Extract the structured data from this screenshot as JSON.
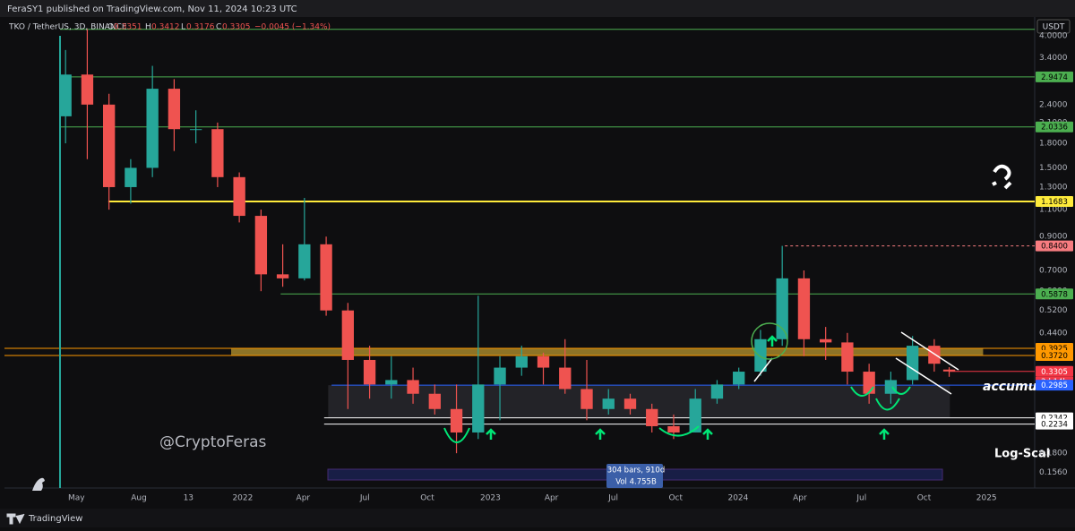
{
  "header": {
    "publisher": "FeraSY1 published on TradingView.com, Nov 11, 2024 10:23 UTC"
  },
  "footer": {
    "brand": "TradingView"
  },
  "chart_data": {
    "type": "candlestick",
    "symbol": "TKO / TetherUS, 3D, BINANCE",
    "last_labels": [
      "O",
      "H",
      "L",
      "C"
    ],
    "last": {
      "open": 0.3351,
      "high": 0.3412,
      "low": 0.3176,
      "close": 0.3305,
      "change": {
        "value": -0.0045,
        "label": "−0.0045 (−1.34%)"
      }
    },
    "currency": "USDT",
    "countdown": "2d 14h",
    "log_scale": true,
    "grid": false,
    "up_color": "#26a69a",
    "down_color": "#ef5350",
    "xlim": [
      -106,
      1412
    ],
    "xticks": [
      {
        "value": 0,
        "label": "May"
      },
      {
        "value": 92,
        "label": "Aug"
      },
      {
        "value": 165,
        "label": "13"
      },
      {
        "value": 245,
        "label": "2022"
      },
      {
        "value": 334,
        "label": "Apr"
      },
      {
        "value": 425,
        "label": "Jul"
      },
      {
        "value": 517,
        "label": "Oct"
      },
      {
        "value": 610,
        "label": "2023"
      },
      {
        "value": 700,
        "label": "Apr"
      },
      {
        "value": 791,
        "label": "Jul"
      },
      {
        "value": 883,
        "label": "Oct"
      },
      {
        "value": 975,
        "label": "2024"
      },
      {
        "value": 1066,
        "label": "Apr"
      },
      {
        "value": 1157,
        "label": "Jul"
      },
      {
        "value": 1249,
        "label": "Oct"
      },
      {
        "value": 1341,
        "label": "2025"
      }
    ],
    "ylim": [
      0.139,
      4.57
    ],
    "yticks": [
      {
        "value": 4.0,
        "label": "4.0000"
      },
      {
        "value": 3.4,
        "label": "3.4000"
      },
      {
        "value": 2.4,
        "label": "2.4000"
      },
      {
        "value": 2.1,
        "label": "2.1000"
      },
      {
        "value": 1.8,
        "label": "1.8000"
      },
      {
        "value": 1.5,
        "label": "1.5000"
      },
      {
        "value": 1.3,
        "label": "1.3000"
      },
      {
        "value": 1.1,
        "label": "1.1000"
      },
      {
        "value": 0.9,
        "label": "0.9000"
      },
      {
        "value": 0.7,
        "label": "0.7000"
      },
      {
        "value": 0.6,
        "label": "0.6000"
      },
      {
        "value": 0.52,
        "label": "0.5200"
      },
      {
        "value": 0.44,
        "label": "0.4400"
      },
      {
        "value": 0.18,
        "label": "0.1800"
      },
      {
        "value": 0.156,
        "label": "0.1560"
      }
    ],
    "x": [
      -16,
      16,
      48,
      80,
      112,
      144,
      176,
      208,
      240,
      272,
      304,
      336,
      368,
      400,
      432,
      464,
      496,
      528,
      560,
      592,
      624,
      656,
      688,
      720,
      752,
      784,
      816,
      848,
      880,
      912,
      944,
      976,
      1008,
      1040,
      1072,
      1104,
      1136,
      1168,
      1200,
      1232,
      1264,
      1286
    ],
    "open": [
      2.2,
      3.0,
      2.4,
      1.3,
      1.5,
      2.7,
      2.0,
      2.0,
      1.4,
      1.05,
      0.68,
      0.66,
      0.85,
      0.52,
      0.36,
      0.3,
      0.31,
      0.28,
      0.25,
      0.21,
      0.3,
      0.34,
      0.37,
      0.34,
      0.29,
      0.25,
      0.27,
      0.25,
      0.22,
      0.21,
      0.27,
      0.3,
      0.33,
      0.42,
      0.66,
      0.42,
      0.41,
      0.33,
      0.28,
      0.31,
      0.4,
      0.3351
    ],
    "high": [
      3.6,
      4.2,
      2.6,
      1.6,
      3.2,
      2.9,
      2.3,
      2.1,
      1.45,
      1.1,
      0.85,
      1.2,
      0.9,
      0.55,
      0.4,
      0.37,
      0.34,
      0.3,
      0.3,
      0.58,
      0.37,
      0.4,
      0.38,
      0.42,
      0.36,
      0.29,
      0.28,
      0.26,
      0.24,
      0.29,
      0.31,
      0.34,
      0.45,
      0.84,
      0.7,
      0.46,
      0.44,
      0.35,
      0.33,
      0.43,
      0.42,
      0.3412
    ],
    "low": [
      1.8,
      1.6,
      1.1,
      1.15,
      1.4,
      1.7,
      1.8,
      1.3,
      1.0,
      0.6,
      0.62,
      0.65,
      0.5,
      0.25,
      0.27,
      0.27,
      0.26,
      0.24,
      0.18,
      0.2,
      0.23,
      0.32,
      0.3,
      0.28,
      0.23,
      0.24,
      0.24,
      0.21,
      0.2,
      0.21,
      0.26,
      0.29,
      0.32,
      0.4,
      0.37,
      0.36,
      0.3,
      0.26,
      0.26,
      0.3,
      0.33,
      0.3176
    ],
    "close": [
      3.0,
      2.4,
      1.3,
      1.5,
      2.7,
      2.0,
      2.0,
      1.4,
      1.05,
      0.68,
      0.66,
      0.85,
      0.52,
      0.36,
      0.3,
      0.31,
      0.28,
      0.25,
      0.21,
      0.3,
      0.34,
      0.37,
      0.34,
      0.29,
      0.25,
      0.27,
      0.25,
      0.22,
      0.21,
      0.27,
      0.3,
      0.33,
      0.42,
      0.66,
      0.42,
      0.41,
      0.33,
      0.28,
      0.31,
      0.4,
      0.35,
      0.3305
    ],
    "levels": [
      {
        "value": 4.2,
        "from": -24,
        "color": "#4caf50"
      },
      {
        "value": 2.9474,
        "label": "2.9474",
        "from": -24,
        "color": "#4caf50"
      },
      {
        "value": 2.0336,
        "label": "2.0336",
        "from": -24,
        "color": "#4caf50"
      },
      {
        "value": 1.1683,
        "label": "1.1683",
        "from": 47,
        "color": "#ffeb3b"
      },
      {
        "value": 0.84,
        "label": "0.8400",
        "from": 1044,
        "color": "#f77c80"
      },
      {
        "value": 0.5878,
        "label": "0.5878",
        "from": 301,
        "color": "#4caf50"
      },
      {
        "value": 0.3925,
        "label": "0.3925",
        "from": -106,
        "color": "#ff9800"
      },
      {
        "value": 0.372,
        "label": "0.3720",
        "from": -106,
        "color": "#ff9800"
      },
      {
        "value": 0.3305,
        "label": "0.3305",
        "from": 1286,
        "color": "#f23645"
      },
      {
        "value": 0.2985,
        "label": "0.2985",
        "from": 376,
        "color": "#2962ff"
      },
      {
        "value": 0.2342,
        "label": "0.2342",
        "from": 365,
        "color": "#ffffff"
      },
      {
        "value": 0.2234,
        "label": "0.2234",
        "from": 365,
        "color": "#ffffff"
      }
    ],
    "zones": [
      {
        "low": 0.372,
        "high": 0.3925,
        "from": 228,
        "to": 1336,
        "color": "#b8962e"
      },
      {
        "low": 0.2342,
        "high": 0.2985,
        "from": 371,
        "to": 1287,
        "color": "#2b2b30"
      }
    ],
    "annotations": {
      "watermark": "@CryptoFeras",
      "note": "accumulat",
      "scale_note": "Log-Scal"
    },
    "info_box": [
      "304 bars, 910d",
      "Vol 4.755B"
    ]
  }
}
